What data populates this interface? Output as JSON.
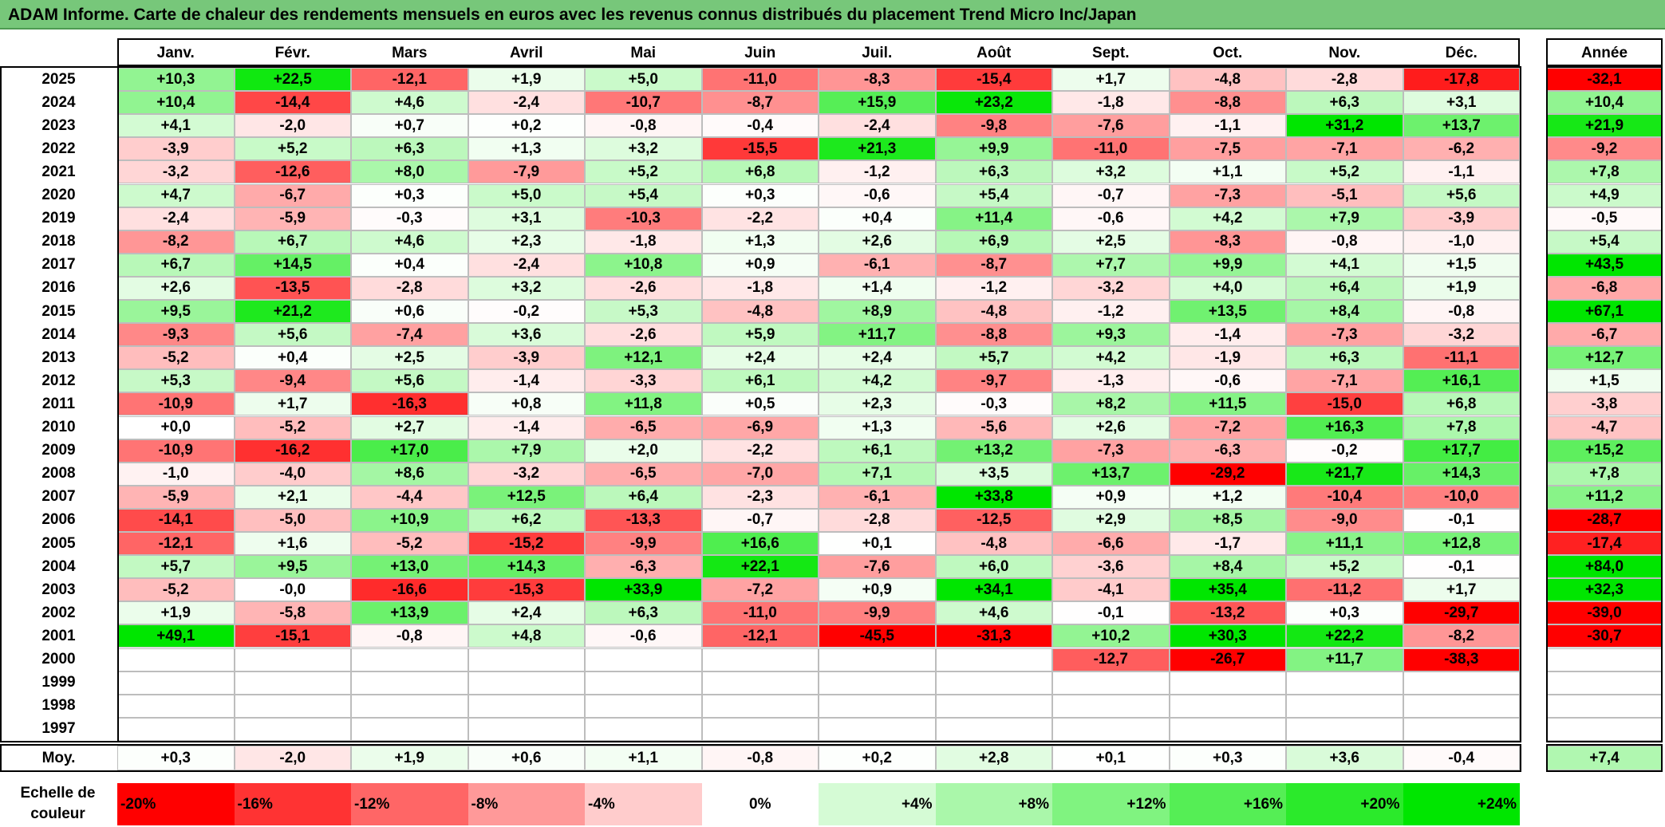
{
  "title": "ADAM Informe. Carte de chaleur des rendements mensuels en euros avec les revenus connus distribués du placement Trend Micro Inc/Japan",
  "chart_data": {
    "type": "heatmap",
    "columns": [
      "Janv.",
      "Févr.",
      "Mars",
      "Avril",
      "Mai",
      "Juin",
      "Juil.",
      "Août",
      "Sept.",
      "Oct.",
      "Nov.",
      "Déc."
    ],
    "annual_header": "Année",
    "years": [
      "2025",
      "2024",
      "2023",
      "2022",
      "2021",
      "2020",
      "2019",
      "2018",
      "2017",
      "2016",
      "2015",
      "2014",
      "2013",
      "2012",
      "2011",
      "2010",
      "2009",
      "2008",
      "2007",
      "2006",
      "2005",
      "2004",
      "2003",
      "2002",
      "2001",
      "2000",
      "1999",
      "1998",
      "1997"
    ],
    "values": [
      [
        "+10,3",
        "+22,5",
        "-12,1",
        "+1,9",
        "+5,0",
        "-11,0",
        "-8,3",
        "-15,4",
        "+1,7",
        "-4,8",
        "-2,8",
        "-17,8"
      ],
      [
        "+10,4",
        "-14,4",
        "+4,6",
        "-2,4",
        "-10,7",
        "-8,7",
        "+15,9",
        "+23,2",
        "-1,8",
        "-8,8",
        "+6,3",
        "+3,1"
      ],
      [
        "+4,1",
        "-2,0",
        "+0,7",
        "+0,2",
        "-0,8",
        "-0,4",
        "-2,4",
        "-9,8",
        "-7,6",
        "-1,1",
        "+31,2",
        "+13,7"
      ],
      [
        "-3,9",
        "+5,2",
        "+6,3",
        "+1,3",
        "+3,2",
        "-15,5",
        "+21,3",
        "+9,9",
        "-11,0",
        "-7,5",
        "-7,1",
        "-6,2"
      ],
      [
        "-3,2",
        "-12,6",
        "+8,0",
        "-7,9",
        "+5,2",
        "+6,8",
        "-1,2",
        "+6,3",
        "+3,2",
        "+1,1",
        "+5,2",
        "-1,1"
      ],
      [
        "+4,7",
        "-6,7",
        "+0,3",
        "+5,0",
        "+5,4",
        "+0,3",
        "-0,6",
        "+5,4",
        "-0,7",
        "-7,3",
        "-5,1",
        "+5,6"
      ],
      [
        "-2,4",
        "-5,9",
        "-0,3",
        "+3,1",
        "-10,3",
        "-2,2",
        "+0,4",
        "+11,4",
        "-0,6",
        "+4,2",
        "+7,9",
        "-3,9"
      ],
      [
        "-8,2",
        "+6,7",
        "+4,6",
        "+2,3",
        "-1,8",
        "+1,3",
        "+2,6",
        "+6,9",
        "+2,5",
        "-8,3",
        "-0,8",
        "-1,0"
      ],
      [
        "+6,7",
        "+14,5",
        "+0,4",
        "-2,4",
        "+10,8",
        "+0,9",
        "-6,1",
        "-8,7",
        "+7,7",
        "+9,9",
        "+4,1",
        "+1,5"
      ],
      [
        "+2,6",
        "-13,5",
        "-2,8",
        "+3,2",
        "-2,6",
        "-1,8",
        "+1,4",
        "-1,2",
        "-3,2",
        "+4,0",
        "+6,4",
        "+1,9"
      ],
      [
        "+9,5",
        "+21,2",
        "+0,6",
        "-0,2",
        "+5,3",
        "-4,8",
        "+8,9",
        "-4,8",
        "-1,2",
        "+13,5",
        "+8,4",
        "-0,8"
      ],
      [
        "-9,3",
        "+5,6",
        "-7,4",
        "+3,6",
        "-2,6",
        "+5,9",
        "+11,7",
        "-8,8",
        "+9,3",
        "-1,4",
        "-7,3",
        "-3,2"
      ],
      [
        "-5,2",
        "+0,4",
        "+2,5",
        "-3,9",
        "+12,1",
        "+2,4",
        "+2,4",
        "+5,7",
        "+4,2",
        "-1,9",
        "+6,3",
        "-11,1"
      ],
      [
        "+5,3",
        "-9,4",
        "+5,6",
        "-1,4",
        "-3,3",
        "+6,1",
        "+4,2",
        "-9,7",
        "-1,3",
        "-0,6",
        "-7,1",
        "+16,1"
      ],
      [
        "-10,9",
        "+1,7",
        "-16,3",
        "+0,8",
        "+11,8",
        "+0,5",
        "+2,3",
        "-0,3",
        "+8,2",
        "+11,5",
        "-15,0",
        "+6,8"
      ],
      [
        "+0,0",
        "-5,2",
        "+2,7",
        "-1,4",
        "-6,5",
        "-6,9",
        "+1,3",
        "-5,6",
        "+2,6",
        "-7,2",
        "+16,3",
        "+7,8"
      ],
      [
        "-10,9",
        "-16,2",
        "+17,0",
        "+7,9",
        "+2,0",
        "-2,2",
        "+6,1",
        "+13,2",
        "-7,3",
        "-6,3",
        "-0,2",
        "+17,7"
      ],
      [
        "-1,0",
        "-4,0",
        "+8,6",
        "-3,2",
        "-6,5",
        "-7,0",
        "+7,1",
        "+3,5",
        "+13,7",
        "-29,2",
        "+21,7",
        "+14,3"
      ],
      [
        "-5,9",
        "+2,1",
        "-4,4",
        "+12,5",
        "+6,4",
        "-2,3",
        "-6,1",
        "+33,8",
        "+0,9",
        "+1,2",
        "-10,4",
        "-10,0"
      ],
      [
        "-14,1",
        "-5,0",
        "+10,9",
        "+6,2",
        "-13,3",
        "-0,7",
        "-2,8",
        "-12,5",
        "+2,9",
        "+8,5",
        "-9,0",
        "-0,1"
      ],
      [
        "-12,1",
        "+1,6",
        "-5,2",
        "-15,2",
        "-9,9",
        "+16,6",
        "+0,1",
        "-4,8",
        "-6,6",
        "-1,7",
        "+11,1",
        "+12,8"
      ],
      [
        "+5,7",
        "+9,5",
        "+13,0",
        "+14,3",
        "-6,3",
        "+22,1",
        "-7,6",
        "+6,0",
        "-3,6",
        "+8,4",
        "+5,2",
        "-0,1"
      ],
      [
        "-5,2",
        "-0,0",
        "-16,6",
        "-15,3",
        "+33,9",
        "-7,2",
        "+0,9",
        "+34,1",
        "-4,1",
        "+35,4",
        "-11,2",
        "+1,7"
      ],
      [
        "+1,9",
        "-5,8",
        "+13,9",
        "+2,4",
        "+6,3",
        "-11,0",
        "-9,9",
        "+4,6",
        "-0,1",
        "-13,2",
        "+0,3",
        "-29,7"
      ],
      [
        "+49,1",
        "-15,1",
        "-0,8",
        "+4,8",
        "-0,6",
        "-12,1",
        "-45,5",
        "-31,3",
        "+10,2",
        "+30,3",
        "+22,2",
        "-8,2"
      ],
      [
        "",
        "",
        "",
        "",
        "",
        "",
        "",
        "",
        "-12,7",
        "-26,7",
        "+11,7",
        "-38,3"
      ],
      [
        "",
        "",
        "",
        "",
        "",
        "",
        "",
        "",
        "",
        "",
        "",
        ""
      ],
      [
        "",
        "",
        "",
        "",
        "",
        "",
        "",
        "",
        "",
        "",
        "",
        ""
      ],
      [
        "",
        "",
        "",
        "",
        "",
        "",
        "",
        "",
        "",
        "",
        "",
        ""
      ]
    ],
    "annual": [
      "-32,1",
      "+10,4",
      "+21,9",
      "-9,2",
      "+7,8",
      "+4,9",
      "-0,5",
      "+5,4",
      "+43,5",
      "-6,8",
      "+67,1",
      "-6,7",
      "+12,7",
      "+1,5",
      "-3,8",
      "-4,7",
      "+15,2",
      "+7,8",
      "+11,2",
      "-28,7",
      "-17,4",
      "+84,0",
      "+32,3",
      "-39,0",
      "-30,7",
      "",
      "",
      "",
      ""
    ],
    "average_label": "Moy.",
    "average": [
      "+0,3",
      "-2,0",
      "+1,9",
      "+0,6",
      "+1,1",
      "-0,8",
      "+0,2",
      "+2,8",
      "+0,1",
      "+0,3",
      "+3,6",
      "-0,4"
    ],
    "average_annual": "+7,4",
    "scale_label": "Echelle de couleur",
    "scale": [
      "-20%",
      "-16%",
      "-12%",
      "-8%",
      "-4%",
      "0%",
      "+4%",
      "+8%",
      "+12%",
      "+16%",
      "+20%",
      "+24%"
    ],
    "scale_values": [
      -20,
      -16,
      -12,
      -8,
      -4,
      0,
      4,
      8,
      12,
      16,
      20,
      24
    ],
    "colors": {
      "negative_max": "#ff0000",
      "neutral": "#ffffff",
      "positive_max": "#00e600",
      "title_bar": "#77c77a"
    }
  }
}
